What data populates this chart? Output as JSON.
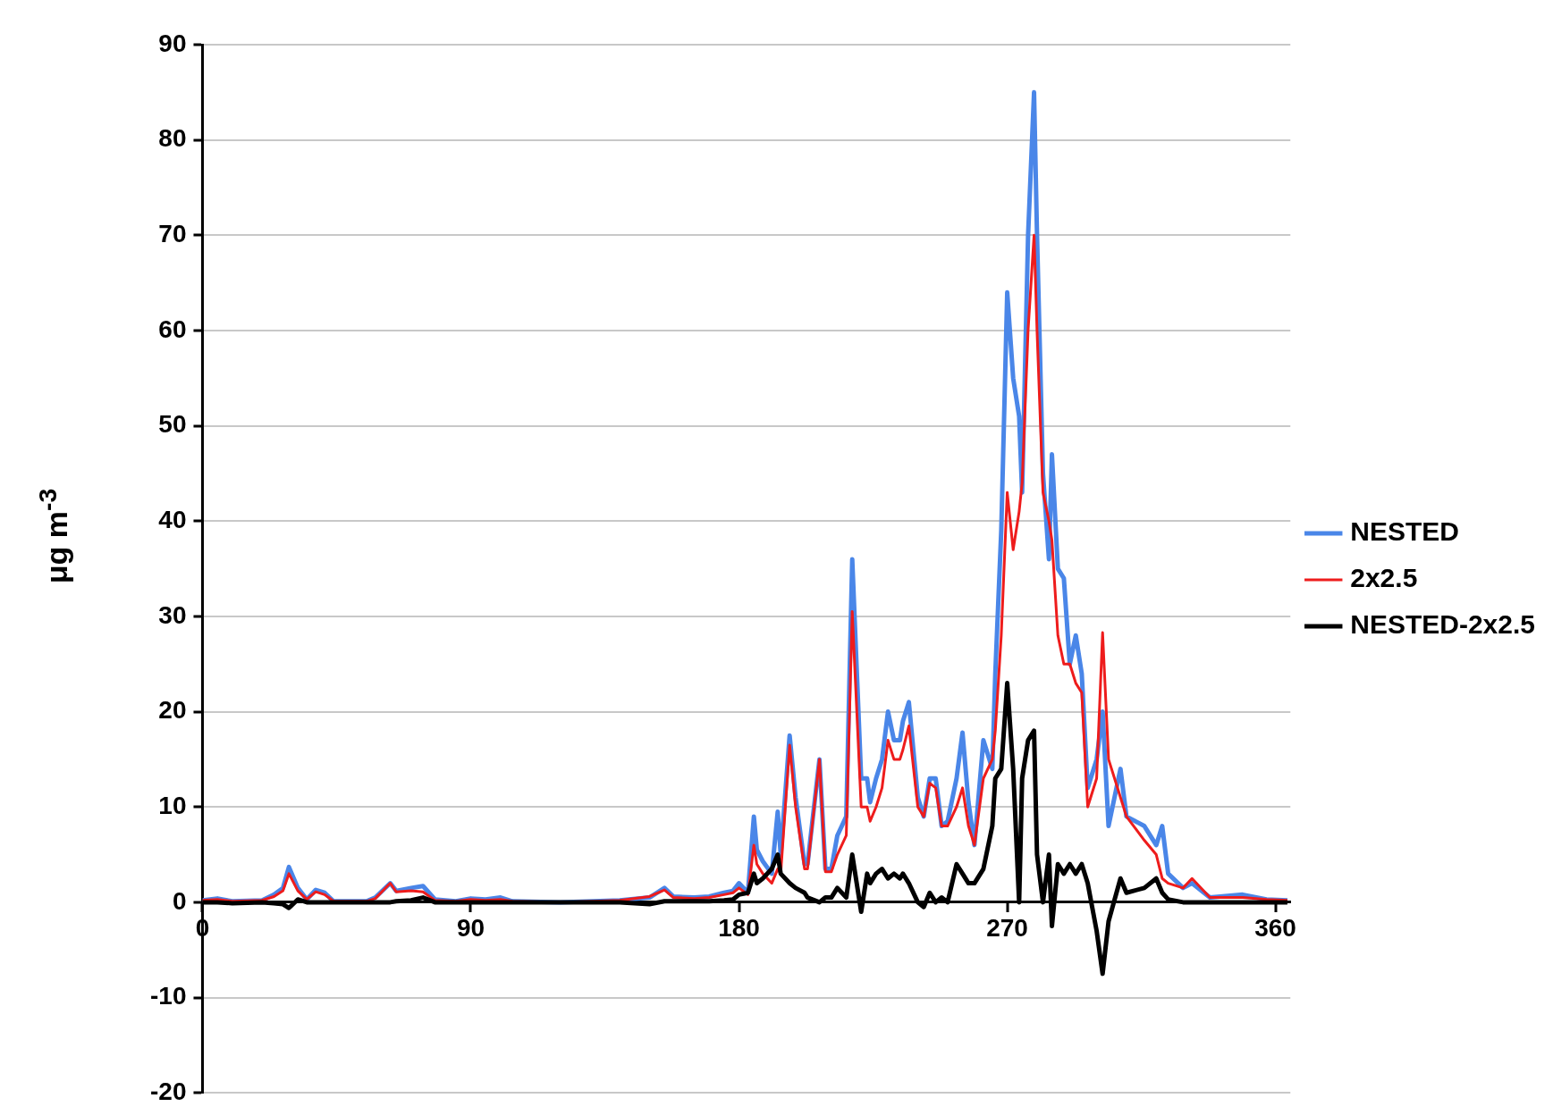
{
  "chart_data": {
    "type": "line",
    "ylabel": "μg m$^{-3}$",
    "x": [
      0,
      5,
      10,
      20,
      24,
      27,
      29,
      32,
      35,
      38,
      41,
      44,
      55,
      58,
      63,
      65,
      70,
      74,
      78,
      85,
      90,
      95,
      100,
      104,
      120,
      140,
      150,
      155,
      158,
      165,
      170,
      175,
      178,
      180,
      183,
      185,
      186,
      188,
      191,
      193,
      194,
      197,
      199,
      202,
      203,
      207,
      209,
      211,
      213,
      216,
      218,
      221,
      223,
      224,
      226,
      228,
      230,
      232,
      234,
      235,
      237,
      240,
      242,
      244,
      246,
      248,
      250,
      253,
      255,
      257,
      259,
      262,
      265,
      266,
      268,
      270,
      272,
      274,
      275,
      277,
      279,
      280,
      282,
      284,
      285,
      287,
      289,
      291,
      293,
      295,
      297,
      300,
      302,
      304,
      308,
      310,
      316,
      320,
      322,
      324,
      329,
      332,
      338,
      349,
      357,
      364
    ],
    "series": [
      {
        "name": "NESTED",
        "color": "#4a86e8",
        "values": [
          0.2,
          0.4,
          0.1,
          0.2,
          0.8,
          1.5,
          3.7,
          1.5,
          0.3,
          1.3,
          1,
          0.1,
          0.1,
          0.5,
          2,
          1.2,
          1.5,
          1.7,
          0.3,
          0.1,
          0.4,
          0.3,
          0.5,
          0.1,
          0,
          0.2,
          0.5,
          1.5,
          0.6,
          0.5,
          0.6,
          1,
          1.2,
          2,
          1,
          9,
          5.5,
          4.3,
          3,
          9.5,
          5,
          17.5,
          11,
          4,
          4,
          15,
          3.5,
          3.5,
          7,
          9,
          36,
          13,
          13,
          10.5,
          13,
          15,
          20,
          17,
          17,
          19,
          21,
          11,
          9,
          13,
          13,
          8,
          8.5,
          13,
          17.8,
          10.5,
          6,
          17,
          14,
          24,
          39,
          64,
          55,
          51,
          43,
          70,
          85,
          70,
          45,
          36,
          47,
          35,
          34,
          25,
          28,
          24,
          12,
          15,
          20,
          8,
          14,
          9,
          8,
          6,
          8,
          3,
          1.5,
          2,
          0.5,
          0.8,
          0.3,
          0.2
        ]
      },
      {
        "name": "2x2.5",
        "color": "#ee1c1c",
        "values": [
          0.2,
          0.3,
          0.1,
          0.2,
          0.6,
          1.2,
          3,
          1.2,
          0.3,
          1.1,
          0.8,
          0.1,
          0.1,
          0.4,
          2,
          1.1,
          1.2,
          1.1,
          0.2,
          0.1,
          0.3,
          0.2,
          0.3,
          0.1,
          0,
          0.2,
          0.6,
          1.3,
          0.5,
          0.4,
          0.5,
          0.8,
          1,
          1.5,
          0.8,
          6,
          4,
          3,
          2,
          3.5,
          3,
          16.5,
          10,
          3.5,
          3.5,
          15,
          3.2,
          3.2,
          5,
          7,
          30.5,
          10,
          10,
          8.5,
          10,
          12,
          17,
          15,
          15,
          16,
          18.5,
          10,
          9,
          12.5,
          12,
          8,
          8,
          10,
          12,
          8,
          6,
          13,
          15,
          18,
          28,
          43,
          37,
          41,
          44,
          60,
          70,
          60,
          43,
          40,
          38,
          28,
          25,
          25,
          23,
          22,
          10,
          13,
          28.3,
          15,
          11,
          9,
          6.5,
          5,
          2.5,
          2,
          1.5,
          2.5,
          0.5,
          0.5,
          0.3,
          0.2
        ]
      },
      {
        "name": "NESTED-2x2.5",
        "color": "#000000",
        "values": [
          0,
          0,
          -0.1,
          0,
          -0.1,
          -0.2,
          -0.6,
          0.3,
          0,
          0,
          0,
          0,
          0,
          0,
          0,
          0.1,
          0.2,
          0.5,
          0,
          0,
          0,
          0,
          0,
          0,
          0,
          0,
          -0.2,
          0.1,
          0.1,
          0.1,
          0.1,
          0.2,
          0.3,
          0.8,
          1,
          3,
          2,
          2.5,
          3.5,
          5,
          3,
          2,
          1.5,
          1,
          0.5,
          0,
          0.5,
          0.5,
          1.5,
          0.5,
          5,
          -1,
          3,
          2,
          3,
          3.5,
          2.5,
          3,
          2.5,
          3,
          2,
          0,
          -0.5,
          1,
          0,
          0.5,
          0,
          4,
          3,
          2,
          2,
          3.5,
          8,
          13,
          14,
          23,
          14,
          0,
          13,
          17,
          18,
          5,
          0,
          5,
          -2.5,
          4,
          3,
          4,
          3,
          4,
          2,
          -3,
          -7.5,
          -2,
          2.5,
          1,
          1.5,
          2.5,
          1,
          0.3,
          0,
          0,
          0,
          0,
          0,
          0
        ]
      }
    ],
    "xlim": [
      0,
      365
    ],
    "xticks": [
      0,
      90,
      180,
      270,
      360
    ],
    "ylim": [
      -20,
      90
    ],
    "yticks": [
      -20,
      -10,
      0,
      10,
      20,
      30,
      40,
      50,
      60,
      70,
      80,
      90
    ],
    "grid": "y",
    "legend": "right",
    "marker": "none",
    "line_style": "solid"
  }
}
